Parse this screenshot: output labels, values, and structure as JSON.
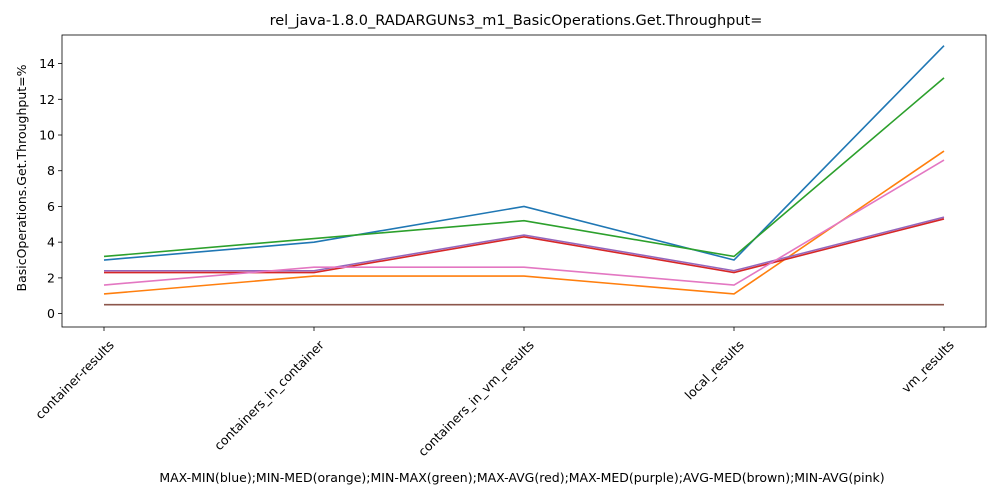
{
  "chart_data": {
    "type": "line",
    "title": "rel_java-1.8.0_RADARGUNs3_m1_BasicOperations.Get.Throughput=",
    "xlabel": "MAX-MIN(blue);MIN-MED(orange);MIN-MAX(green);MAX-AVG(red);MAX-MED(purple);AVG-MED(brown);MIN-AVG(pink)",
    "ylabel": "BasicOperations.Get.Throughput=%",
    "categories": [
      "container-results",
      "containers_in_container",
      "containers_in_vm_results",
      "local_results",
      "vm_results"
    ],
    "ylim": [
      -0.75,
      15.6
    ],
    "yticks": [
      "0",
      "2",
      "4",
      "6",
      "8",
      "10",
      "12",
      "14"
    ],
    "grid": false,
    "series": [
      {
        "color": "#1f77b4",
        "values": [
          3.0,
          4.0,
          6.0,
          3.0,
          15.0
        ]
      },
      {
        "color": "#ff7f0e",
        "values": [
          1.1,
          2.1,
          2.1,
          1.1,
          9.1
        ]
      },
      {
        "color": "#2ca02c",
        "values": [
          3.2,
          4.2,
          5.2,
          3.2,
          13.2
        ]
      },
      {
        "color": "#9467bd",
        "values": [
          2.4,
          2.4,
          4.4,
          2.4,
          5.4
        ]
      },
      {
        "color": "#d62728",
        "values": [
          2.3,
          2.3,
          4.3,
          2.3,
          5.3
        ]
      },
      {
        "color": "#8c564b",
        "values": [
          0.5,
          0.5,
          0.5,
          0.5,
          0.5
        ]
      },
      {
        "color": "#e377c2",
        "values": [
          1.6,
          2.6,
          2.6,
          1.6,
          8.6
        ]
      }
    ]
  }
}
